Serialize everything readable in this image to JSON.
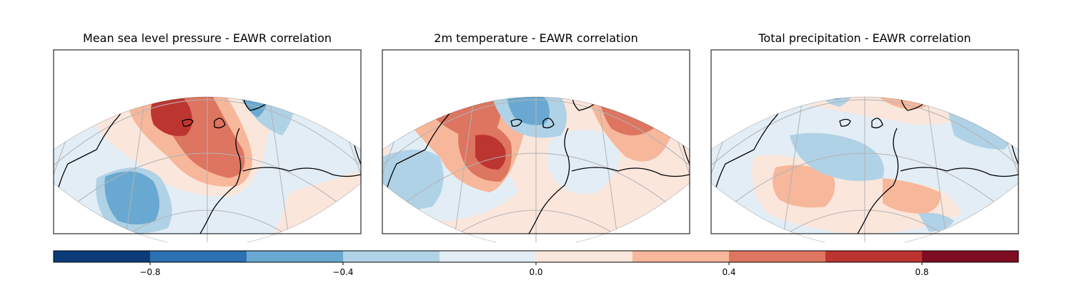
{
  "panels": [
    {
      "id": "mslp",
      "title": "Mean sea level pressure - EAWR correlation"
    },
    {
      "id": "t2m",
      "title": "2m temperature - EAWR correlation"
    },
    {
      "id": "tp",
      "title": "Total precipitation - EAWR correlation"
    }
  ],
  "colorbar": {
    "min": -1.0,
    "max": 1.0,
    "levels": [
      -1.0,
      -0.8,
      -0.6,
      -0.4,
      -0.2,
      0.0,
      0.2,
      0.4,
      0.6,
      0.8,
      1.0
    ],
    "colors": [
      "#0b3c79",
      "#2c71b2",
      "#69a9d1",
      "#b0d2e6",
      "#e3edf5",
      "#fbe6dc",
      "#f7b79b",
      "#dd7560",
      "#bd3530",
      "#7f0d22"
    ],
    "ticks": [
      {
        "value": -0.8,
        "label": "−0.8"
      },
      {
        "value": -0.4,
        "label": "−0.4"
      },
      {
        "value": 0.0,
        "label": "0.0"
      },
      {
        "value": 0.4,
        "label": "0.4"
      },
      {
        "value": 0.8,
        "label": "0.8"
      }
    ]
  }
}
